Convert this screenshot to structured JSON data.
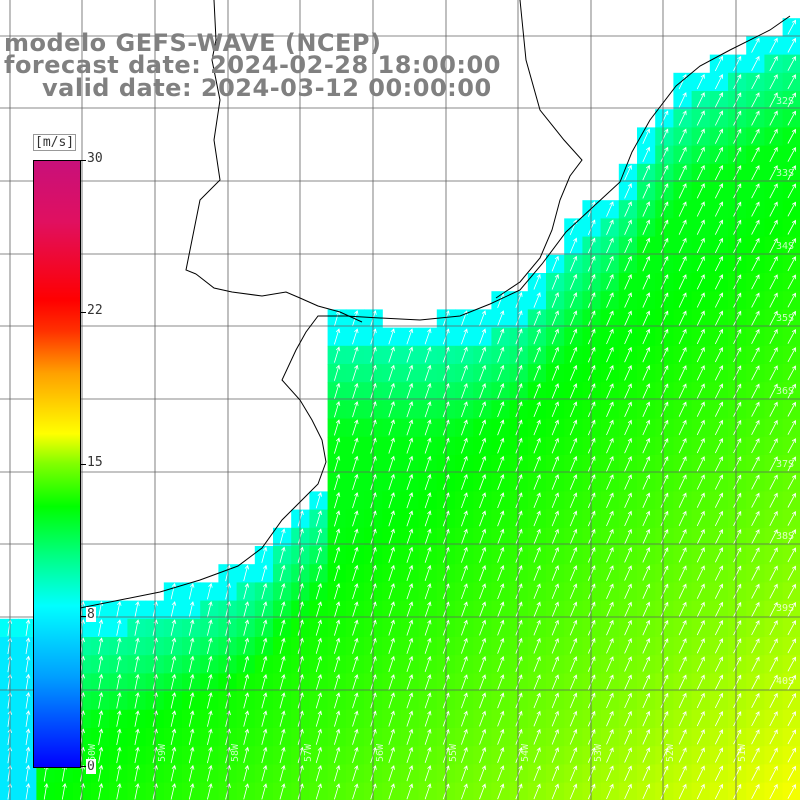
{
  "title": {
    "model": "modelo GEFS-WAVE (NCEP)",
    "forecast_date": "forecast date: 2024-02-28 18:00:00",
    "valid_date": "valid date: 2024-03-12 00:00:00"
  },
  "colorbar": {
    "unit": "[m/s]",
    "ticks": [
      "30",
      "22",
      "15",
      "8",
      "0"
    ],
    "colors": [
      "#0000ff",
      "#00a0ff",
      "#00ffff",
      "#00ff80",
      "#00ff00",
      "#80ff00",
      "#ffff00",
      "#ffa000",
      "#ff0000",
      "#c8107a"
    ]
  },
  "axes": {
    "lat_labels": [
      "32S",
      "33S",
      "34S",
      "35S",
      "36S",
      "37S",
      "38S",
      "39S",
      "40S"
    ],
    "lon_labels": [
      "60W",
      "59W",
      "58W",
      "57W",
      "56W",
      "55W",
      "54W",
      "53W",
      "52W",
      "51W"
    ]
  },
  "colors": {
    "land": "#ffffff",
    "coast": "#000000",
    "grid": "#606060",
    "arrow": "#ffffff"
  }
}
